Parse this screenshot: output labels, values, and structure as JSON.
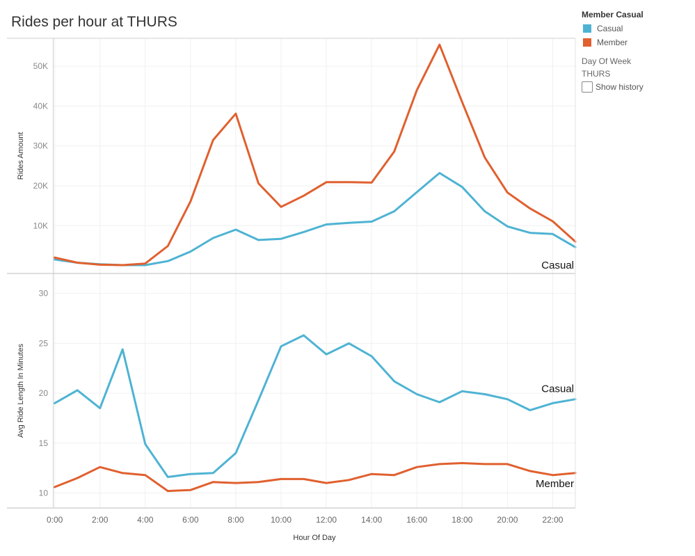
{
  "title": "Rides per hour at THURS",
  "legend": {
    "title": "Member Casual",
    "items": [
      {
        "label": "Casual",
        "color": "#4eb3d3"
      },
      {
        "label": "Member",
        "color": "#e0602f"
      }
    ]
  },
  "filter": {
    "title": "Day Of Week",
    "value": "THURS",
    "history_label": "Show history"
  },
  "chart_data": {
    "type": "line",
    "xlabel": "Hour Of Day",
    "x": [
      0,
      1,
      2,
      3,
      4,
      5,
      6,
      7,
      8,
      9,
      10,
      11,
      12,
      13,
      14,
      15,
      16,
      17,
      18,
      19,
      20,
      21,
      22,
      23
    ],
    "xticks": [
      0,
      2,
      4,
      6,
      8,
      10,
      12,
      14,
      16,
      18,
      20,
      22
    ],
    "xtick_labels": [
      "0:00",
      "2:00",
      "4:00",
      "6:00",
      "8:00",
      "10:00",
      "12:00",
      "14:00",
      "16:00",
      "18:00",
      "20:00",
      "22:00"
    ],
    "panels": [
      {
        "ylabel": "Rides Amount",
        "ylim": [
          -2000,
          57000
        ],
        "yticks": [
          10000,
          20000,
          30000,
          40000,
          50000
        ],
        "ytick_labels": [
          "10K",
          "20K",
          "30K",
          "40K",
          "50K"
        ],
        "end_label": "Casual",
        "series": [
          {
            "name": "Casual",
            "color": "#4eb3d3",
            "values": [
              1500,
              700,
              300,
              100,
              100,
              1100,
              3500,
              6900,
              9000,
              6400,
              6700,
              8400,
              10300,
              10700,
              11000,
              13600,
              18400,
              23200,
              19700,
              13600,
              9800,
              8200,
              7900,
              4600
            ]
          },
          {
            "name": "Member",
            "color": "#e0602f",
            "values": [
              2000,
              700,
              200,
              100,
              500,
              4900,
              16100,
              31500,
              38100,
              20600,
              14700,
              17500,
              20900,
              20900,
              20800,
              28600,
              44000,
              55400,
              41000,
              27100,
              18300,
              14300,
              11100,
              6000
            ]
          }
        ]
      },
      {
        "ylabel": "Avg Ride Length In Minutes",
        "ylim": [
          8.5,
          32.0
        ],
        "yticks": [
          10,
          15,
          20,
          25,
          30
        ],
        "ytick_labels": [
          "10",
          "15",
          "20",
          "25",
          "30"
        ],
        "end_labels": [
          "Casual",
          "Member"
        ],
        "series": [
          {
            "name": "Casual",
            "color": "#4eb3d3",
            "values": [
              19.0,
              20.3,
              18.5,
              24.4,
              14.9,
              11.6,
              11.9,
              12.0,
              14.0,
              19.3,
              24.7,
              25.8,
              23.9,
              25.0,
              23.7,
              21.2,
              19.9,
              19.1,
              20.2,
              19.9,
              19.4,
              18.3,
              19.0,
              19.4
            ]
          },
          {
            "name": "Member",
            "color": "#e0602f",
            "values": [
              10.6,
              11.5,
              12.6,
              12.0,
              11.8,
              10.2,
              10.3,
              11.1,
              11.0,
              11.1,
              11.4,
              11.4,
              11.0,
              11.3,
              11.9,
              11.8,
              12.6,
              12.9,
              13.0,
              12.9,
              12.9,
              12.2,
              11.8,
              12.0
            ]
          }
        ]
      }
    ]
  }
}
